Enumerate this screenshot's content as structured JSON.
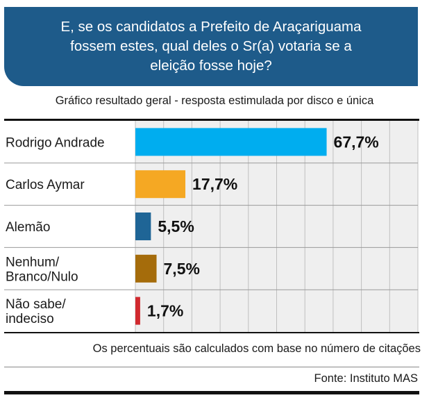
{
  "header": {
    "title": "E, se os candidatos a Prefeito de Araçariguama\nfossem estes, qual deles o Sr(a) votaria se a\neleição fosse hoje?"
  },
  "subtitle": "Gráfico resultado geral - resposta estimulada por disco e única",
  "footnote": "Os percentuais são calculados com base no número de citações",
  "source": "Fonte: Instituto MAS",
  "chart_data": {
    "type": "bar",
    "orientation": "horizontal",
    "categories": [
      "Rodrigo Andrade",
      "Carlos Aymar",
      "Alemão",
      "Nenhum/\nBranco/Nulo",
      "Não sabe/\nindeciso"
    ],
    "values": [
      67.7,
      17.7,
      5.5,
      7.5,
      1.7
    ],
    "value_labels": [
      "67,7%",
      "17,7%",
      "5,5%",
      "7,5%",
      "1,7%"
    ],
    "colors": [
      "#00adef",
      "#f5a823",
      "#1f6596",
      "#a56c0b",
      "#d12a2f"
    ],
    "xlim": [
      0,
      100
    ],
    "grid": true,
    "grid_color": "#bfbfbf",
    "plot_background": "#efefef"
  }
}
